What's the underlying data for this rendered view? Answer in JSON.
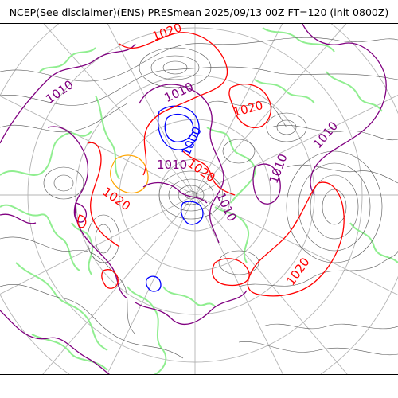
{
  "header": {
    "title": "NCEP(See disclaimer)(ENS) PRESmean 2025/09/13 00Z FT=120 (init 0800Z)"
  },
  "map": {
    "projection": "polar-stereographic",
    "colors": {
      "isobar_thin": "#555555",
      "graticule": "#b4b4b4",
      "coastline": "#90ee90",
      "contour_1000": "#0000ff",
      "contour_1010": "#800080",
      "contour_1020": "#ff0000",
      "contour_1025": "#ffa500"
    },
    "contour_labels": [
      {
        "text": "1020",
        "color": "#ff0000"
      },
      {
        "text": "1010",
        "color": "#800080"
      },
      {
        "text": "1010",
        "color": "#800080"
      },
      {
        "text": "1020",
        "color": "#ff0000"
      },
      {
        "text": "1010",
        "color": "#800080"
      },
      {
        "text": "1000",
        "color": "#0000ff"
      },
      {
        "text": "1010",
        "color": "#800080"
      },
      {
        "text": "1020",
        "color": "#ff0000"
      },
      {
        "text": "1010",
        "color": "#800080"
      },
      {
        "text": "1010",
        "color": "#800080"
      },
      {
        "text": "1020",
        "color": "#ff0000"
      },
      {
        "text": "1020",
        "color": "#ff0000"
      }
    ]
  }
}
